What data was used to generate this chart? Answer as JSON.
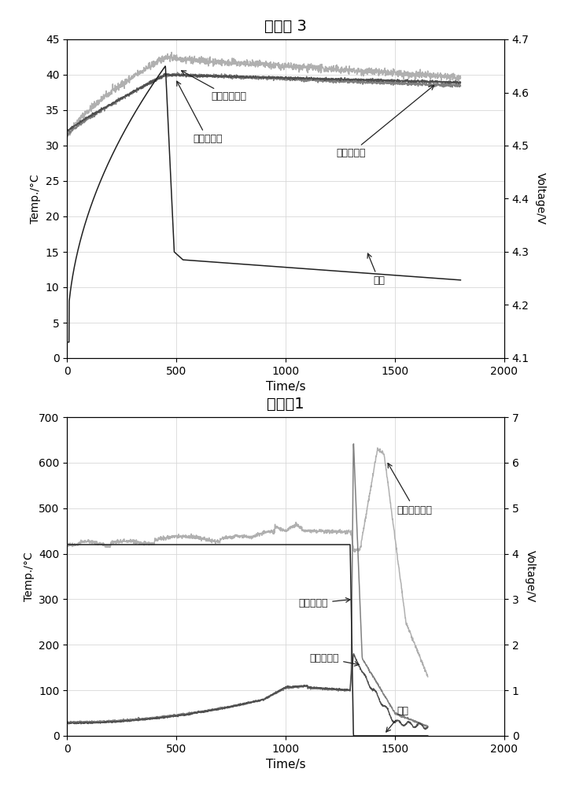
{
  "top_title": "实施例 3",
  "bottom_title": "对比例1",
  "top": {
    "xlim": [
      0,
      2000
    ],
    "ylim_left": [
      0,
      45
    ],
    "ylim_right": [
      4.1,
      4.7
    ],
    "yticks_left": [
      0,
      5,
      10,
      15,
      20,
      25,
      30,
      35,
      40,
      45
    ],
    "yticks_right": [
      4.1,
      4.2,
      4.3,
      4.4,
      4.5,
      4.6,
      4.7
    ],
    "xticks": [
      0,
      500,
      1000,
      1500,
      2000
    ],
    "xlabel": "Time/s",
    "ylabel_left": "Temp./°C",
    "ylabel_right": "Voltage/V",
    "colors": {
      "surface_temp": "#b0b0b0",
      "neg_tab_temp": "#808080",
      "pos_tab_temp": "#505050",
      "voltage": "#202020"
    }
  },
  "bottom": {
    "xlim": [
      0,
      2000
    ],
    "ylim_left": [
      0,
      700
    ],
    "ylim_right": [
      0.0,
      7.0
    ],
    "yticks_left": [
      0,
      100,
      200,
      300,
      400,
      500,
      600,
      700
    ],
    "yticks_right": [
      0.0,
      1.0,
      2.0,
      3.0,
      4.0,
      5.0,
      6.0,
      7.0
    ],
    "xticks": [
      0,
      500,
      1000,
      1500,
      2000
    ],
    "xlabel": "Time/s",
    "ylabel_left": "Temp./°C",
    "ylabel_right": "Voltage/V",
    "colors": {
      "surface_temp": "#b0b0b0",
      "neg_tab_temp": "#808080",
      "pos_tab_temp": "#505050",
      "voltage": "#202020"
    }
  },
  "separator_color": "#c8dfc8",
  "background_color": "#ffffff",
  "grid_color": "#d8d8d8"
}
